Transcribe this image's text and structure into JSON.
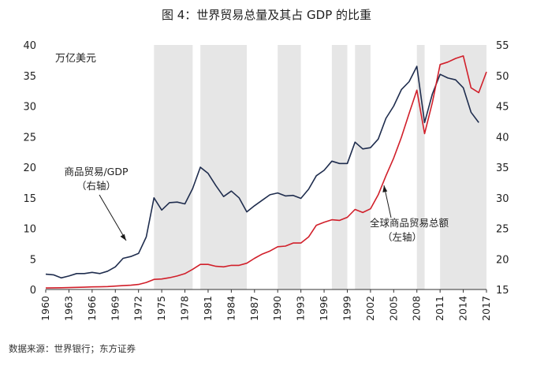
{
  "chart_data": {
    "type": "line",
    "title": "图 4：世界贸易总量及其占 GDP 的比重",
    "source": "数据来源：世界银行；东方证券",
    "unit_label": "万亿美元",
    "left_axis": {
      "min": 0,
      "max": 40,
      "ticks": [
        0,
        5,
        10,
        15,
        20,
        25,
        30,
        35,
        40
      ]
    },
    "right_axis": {
      "min": 15,
      "max": 55,
      "ticks": [
        15,
        20,
        25,
        30,
        35,
        40,
        45,
        50,
        55
      ]
    },
    "x_range": [
      1960,
      2017
    ],
    "x_ticks": [
      1960,
      1963,
      1966,
      1969,
      1972,
      1975,
      1978,
      1981,
      1984,
      1987,
      1990,
      1993,
      1996,
      1999,
      2002,
      2005,
      2008,
      2011,
      2014,
      2017
    ],
    "shaded_periods": [
      [
        1974,
        1979
      ],
      [
        1980,
        1986
      ],
      [
        1990,
        1993
      ],
      [
        1997,
        1999
      ],
      [
        2000,
        2002
      ],
      [
        2008,
        2009
      ],
      [
        2011,
        2017
      ]
    ],
    "series": [
      {
        "name": "商品贸易/GDP",
        "axis": "right",
        "color": "#1f2d4e",
        "x": [
          1960,
          1961,
          1962,
          1963,
          1964,
          1965,
          1966,
          1967,
          1968,
          1969,
          1970,
          1971,
          1972,
          1973,
          1974,
          1975,
          1976,
          1977,
          1978,
          1979,
          1980,
          1981,
          1982,
          1983,
          1984,
          1985,
          1986,
          1987,
          1988,
          1989,
          1990,
          1991,
          1992,
          1993,
          1994,
          1995,
          1996,
          1997,
          1998,
          1999,
          2000,
          2001,
          2002,
          2003,
          2004,
          2005,
          2006,
          2007,
          2008,
          2009,
          2010,
          2011,
          2012,
          2013,
          2014,
          2015,
          2016
        ],
        "values": [
          17.5,
          17.4,
          16.9,
          17.2,
          17.6,
          17.6,
          17.8,
          17.6,
          18.0,
          18.7,
          20.1,
          20.4,
          20.9,
          23.6,
          30.0,
          28.0,
          29.2,
          29.3,
          29.0,
          31.5,
          35.0,
          34.0,
          32.0,
          30.2,
          31.1,
          30.0,
          27.7,
          28.7,
          29.6,
          30.5,
          30.8,
          30.3,
          30.4,
          29.9,
          31.4,
          33.6,
          34.5,
          36.0,
          35.6,
          35.6,
          39.1,
          38.0,
          38.2,
          39.6,
          43.0,
          45.0,
          47.7,
          49.0,
          51.5,
          42.3,
          47.0,
          50.2,
          49.6,
          49.3,
          48.0,
          44.0,
          42.3
        ]
      },
      {
        "name": "全球商品贸易总额",
        "axis": "left",
        "color": "#d11f2a",
        "x": [
          1960,
          1961,
          1962,
          1963,
          1964,
          1965,
          1966,
          1967,
          1968,
          1969,
          1970,
          1971,
          1972,
          1973,
          1974,
          1975,
          1976,
          1977,
          1978,
          1979,
          1980,
          1981,
          1982,
          1983,
          1984,
          1985,
          1986,
          1987,
          1988,
          1989,
          1990,
          1991,
          1992,
          1993,
          1994,
          1995,
          1996,
          1997,
          1998,
          1999,
          2000,
          2001,
          2002,
          2003,
          2004,
          2005,
          2006,
          2007,
          2008,
          2009,
          2010,
          2011,
          2012,
          2013,
          2014,
          2015,
          2016,
          2017
        ],
        "values": [
          0.25,
          0.27,
          0.28,
          0.31,
          0.35,
          0.38,
          0.42,
          0.44,
          0.48,
          0.55,
          0.63,
          0.7,
          0.82,
          1.15,
          1.65,
          1.72,
          1.92,
          2.2,
          2.6,
          3.3,
          4.1,
          4.1,
          3.8,
          3.7,
          3.95,
          3.95,
          4.3,
          5.1,
          5.8,
          6.3,
          7.0,
          7.1,
          7.6,
          7.6,
          8.6,
          10.5,
          11.0,
          11.4,
          11.3,
          11.8,
          13.1,
          12.6,
          13.2,
          15.5,
          18.6,
          21.5,
          24.9,
          28.8,
          32.6,
          25.5,
          30.6,
          36.8,
          37.2,
          37.8,
          38.2,
          33.0,
          32.2,
          35.6
        ]
      }
    ],
    "annotations": [
      {
        "lines": [
          "商品贸易/GDP",
          "（右轴）"
        ],
        "target_series": "商品贸易/GDP"
      },
      {
        "lines": [
          "全球商品贸易总额",
          "（左轴）"
        ],
        "target_series": "全球商品贸易总额"
      }
    ]
  }
}
